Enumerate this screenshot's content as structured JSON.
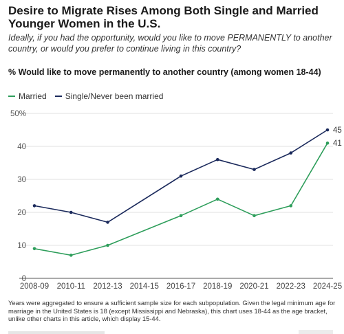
{
  "title": "Desire to Migrate Rises Among Both Single and Married Younger Women in the U.S.",
  "subtitle": "Ideally, if you had the opportunity, would you like to move PERMANENTLY to another country, or would you prefer to continue living in this country?",
  "chart_heading": "% Would like to move permanently to another country (among women 18-44)",
  "footnote": "Years were aggregated to ensure a sufficient sample size for each subpopulation. Given the legal minimum age for marriage in the United States is 18 (except Mississippi and Nebraska), this chart uses 18-44 as the age bracket, unlike other charts in this article, which display 15-44.",
  "chart_data": {
    "type": "line",
    "title": "Desire to Migrate Rises Among Both Single and Married Younger Women in the U.S.",
    "x": [
      "2008-09",
      "2010-11",
      "2012-13",
      "2014-15",
      "2016-17",
      "2018-19",
      "2020-21",
      "2022-23",
      "2024-25"
    ],
    "ylim": [
      0,
      50
    ],
    "yticks": [
      0,
      10,
      20,
      30,
      40,
      50
    ],
    "ytick_labels": [
      "0",
      "10",
      "20",
      "30",
      "40",
      "50%"
    ],
    "grid": "horizontal",
    "legend_position": "top-left",
    "series": [
      {
        "name": "Married",
        "color": "#2e9e5b",
        "values": [
          9,
          7,
          10,
          null,
          19,
          24,
          19,
          22,
          41
        ],
        "end_label": "41"
      },
      {
        "name": "Single/Never been married",
        "color": "#1b2a5c",
        "values": [
          22,
          20,
          17,
          null,
          31,
          36,
          33,
          38,
          45
        ],
        "end_label": "45"
      }
    ]
  }
}
